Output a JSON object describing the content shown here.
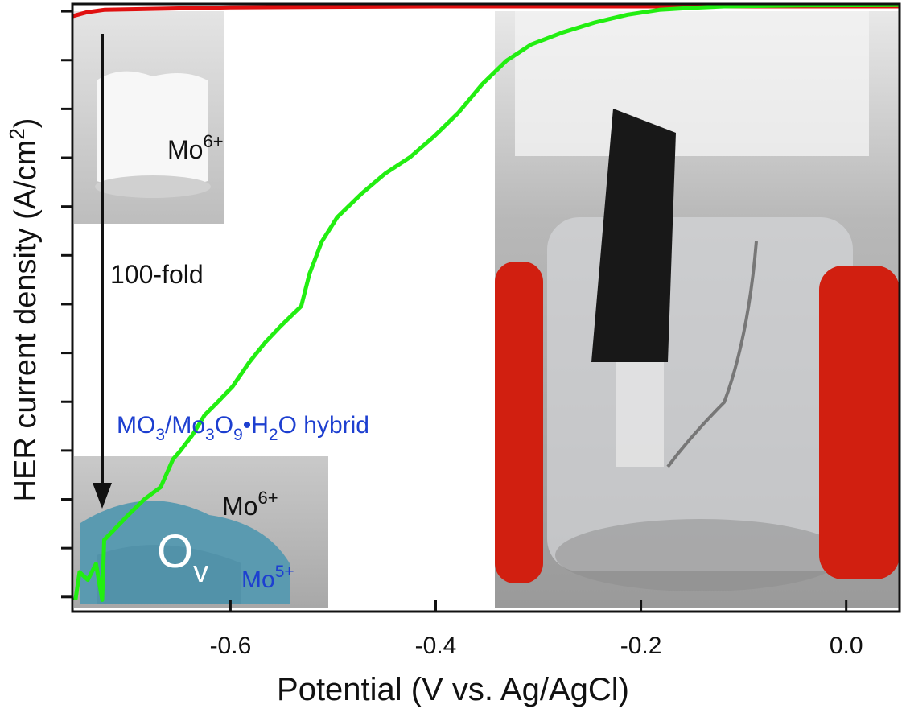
{
  "chart_data": {
    "type": "line",
    "x_label": "Potential (V vs. Ag/AgCl)",
    "y_label": {
      "text": "HER current density (A/cm",
      "sup": "2",
      "close": ")"
    },
    "xlim": [
      -0.754,
      0.052
    ],
    "xticks": [
      -0.6,
      -0.4,
      -0.2,
      {
        "value": 0,
        "label": "0.0"
      }
    ],
    "ylim": [
      -12.3,
      0.15
    ],
    "yticks": [
      0,
      -1,
      -2,
      -3,
      -4,
      -5,
      -6,
      -7,
      -8,
      -9,
      -10,
      -11,
      -12
    ],
    "series": [
      {
        "color": "#e01010",
        "x": [
          -0.754,
          -0.74,
          -0.723,
          -0.6,
          -0.4,
          -0.2,
          0.052
        ],
        "values": [
          -0.1,
          -0.02,
          0.03,
          0.08,
          0.1,
          0.1,
          0.1
        ]
      },
      {
        "color": "#22ee11",
        "x": [
          -0.751,
          -0.747,
          -0.739,
          -0.731,
          -0.725,
          -0.723,
          -0.715,
          -0.7,
          -0.684,
          -0.668,
          -0.656,
          -0.649,
          -0.637,
          -0.625,
          -0.613,
          -0.598,
          -0.582,
          -0.566,
          -0.551,
          -0.531,
          -0.523,
          -0.511,
          -0.496,
          -0.472,
          -0.449,
          -0.425,
          -0.402,
          -0.378,
          -0.355,
          -0.331,
          -0.307,
          -0.276,
          -0.245,
          -0.213,
          -0.182,
          -0.151,
          -0.119,
          -0.041,
          0.052
        ],
        "values": [
          -12.06,
          -11.49,
          -11.65,
          -11.32,
          -12.06,
          -10.83,
          -10.66,
          -10.33,
          -10.0,
          -9.75,
          -9.18,
          -9.01,
          -8.68,
          -8.27,
          -8.02,
          -7.69,
          -7.2,
          -6.78,
          -6.45,
          -6.04,
          -5.38,
          -4.72,
          -4.22,
          -3.73,
          -3.32,
          -2.99,
          -2.57,
          -2.08,
          -1.5,
          -1.01,
          -0.68,
          -0.43,
          -0.23,
          -0.07,
          0.03,
          0.07,
          0.1,
          0.12,
          0.13
        ]
      }
    ],
    "annotations": {
      "top_state": {
        "base": "Mo",
        "sup": "6+"
      },
      "arrow_label": "100-fold",
      "hybrid": [
        "MO",
        "3",
        "/Mo",
        "3",
        "O",
        "9",
        "•H",
        "2",
        "O hybrid"
      ],
      "bottom_state": {
        "base": "Mo",
        "sup": "6+"
      },
      "vacancy": {
        "base": "O",
        "sub": "v"
      },
      "reduced_state": {
        "base": "Mo",
        "sup": "5+"
      }
    }
  }
}
